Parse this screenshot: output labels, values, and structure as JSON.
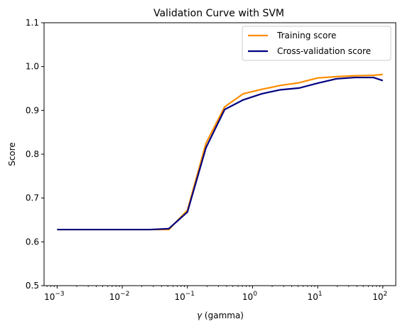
{
  "chart_data": {
    "type": "line",
    "title": "Validation Curve with SVM",
    "xlabel_symbol": "γ",
    "xlabel_rest": " (gamma)",
    "ylabel": "Score",
    "xscale": "log",
    "xlim": [
      0.00063,
      158
    ],
    "ylim": [
      0.5,
      1.1
    ],
    "grid": false,
    "legend_position": "upper right",
    "xticks": [
      {
        "base": "10",
        "exp": "−3",
        "value": 0.001
      },
      {
        "base": "10",
        "exp": "−2",
        "value": 0.01
      },
      {
        "base": "10",
        "exp": "−1",
        "value": 0.1
      },
      {
        "base": "10",
        "exp": "0",
        "value": 1
      },
      {
        "base": "10",
        "exp": "1",
        "value": 10
      },
      {
        "base": "10",
        "exp": "2",
        "value": 100
      }
    ],
    "yticks": [
      "0.5",
      "0.6",
      "0.7",
      "0.8",
      "0.9",
      "1.0",
      "1.1"
    ],
    "x": [
      0.001,
      0.00193,
      0.00373,
      0.0072,
      0.0139,
      0.0268,
      0.0518,
      0.1,
      0.193,
      0.373,
      0.72,
      1.39,
      2.68,
      5.18,
      10,
      19.3,
      37.3,
      72,
      100
    ],
    "series": [
      {
        "name": "Training score",
        "color": "#ff8c00",
        "values": [
          0.628,
          0.628,
          0.628,
          0.628,
          0.628,
          0.628,
          0.628,
          0.672,
          0.825,
          0.908,
          0.938,
          0.948,
          0.957,
          0.963,
          0.974,
          0.977,
          0.979,
          0.98,
          0.982
        ]
      },
      {
        "name": "Cross-validation score",
        "color": "#000080",
        "values": [
          0.628,
          0.628,
          0.628,
          0.628,
          0.628,
          0.628,
          0.63,
          0.668,
          0.815,
          0.902,
          0.924,
          0.938,
          0.947,
          0.951,
          0.962,
          0.972,
          0.975,
          0.975,
          0.968
        ]
      }
    ]
  }
}
